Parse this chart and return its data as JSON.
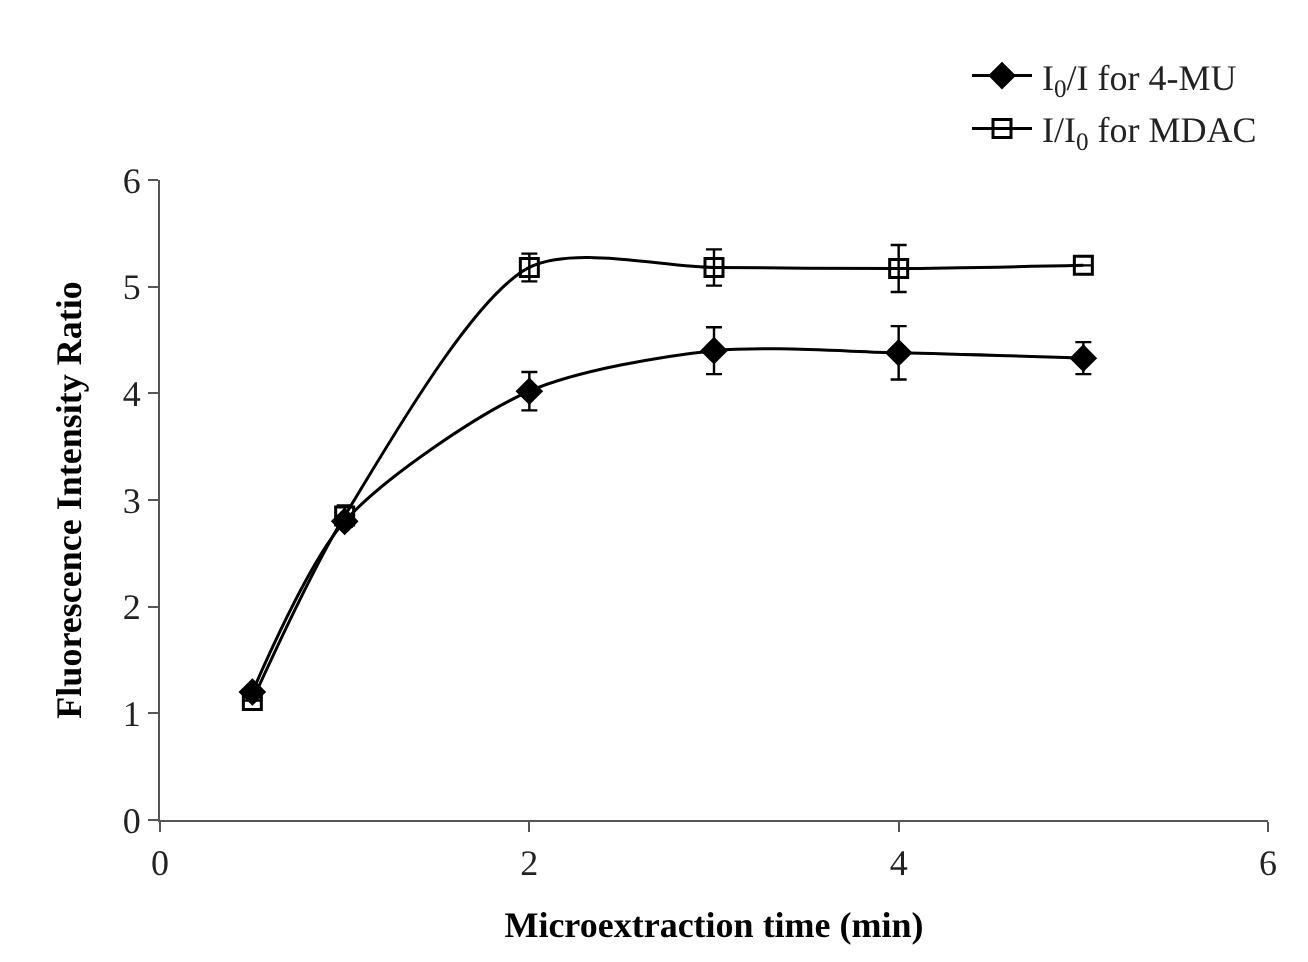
{
  "chart_data": {
    "type": "line",
    "xlabel": "Microextraction time (min)",
    "ylabel": "Fluorescence Intensity Ratio",
    "x": [
      0.5,
      1,
      2,
      3,
      4,
      5
    ],
    "series": [
      {
        "name": "I$_{0}$/I for 4-MU",
        "color": "#000000",
        "marker": "diamond",
        "values": [
          1.2,
          2.8,
          4.02,
          4.4,
          4.38,
          4.33
        ],
        "errors": [
          null,
          0.05,
          0.18,
          0.22,
          0.25,
          0.15
        ]
      },
      {
        "name": "I/I$_{0}$ for MDAC",
        "color": "#000000",
        "marker": "square",
        "values": [
          1.12,
          2.85,
          5.18,
          5.18,
          5.17,
          5.2
        ],
        "errors": [
          null,
          0.1,
          0.13,
          0.17,
          0.22,
          null
        ]
      }
    ],
    "xlim": [
      0,
      6
    ],
    "xticks": [
      0,
      2,
      4,
      6
    ],
    "ylim": [
      0,
      6
    ],
    "yticks": [
      0,
      1,
      2,
      3,
      4,
      5,
      6
    ],
    "legend": "top right",
    "line_style": "solid"
  }
}
